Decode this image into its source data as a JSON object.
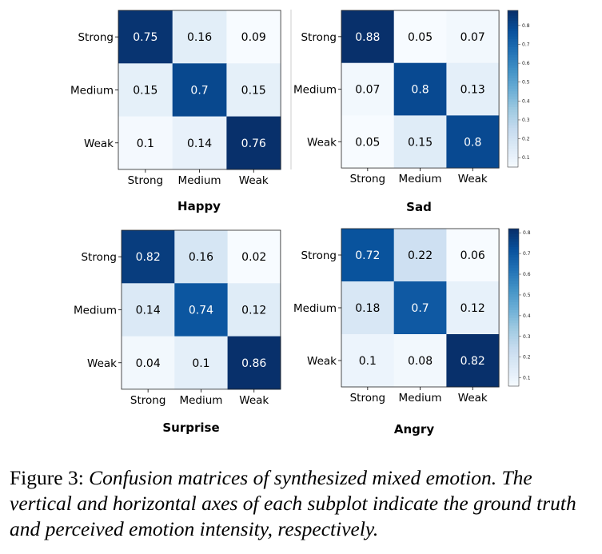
{
  "chart_data": [
    {
      "type": "heatmap",
      "title": "Happy",
      "row_labels": [
        "Strong",
        "Medium",
        "Weak"
      ],
      "col_labels": [
        "Strong",
        "Medium",
        "Weak"
      ],
      "values": [
        [
          0.75,
          0.16,
          0.09
        ],
        [
          0.15,
          0.7,
          0.15
        ],
        [
          0.1,
          0.14,
          0.76
        ]
      ],
      "colormap": "Blues",
      "colorbar": false
    },
    {
      "type": "heatmap",
      "title": "Sad",
      "row_labels": [
        "Strong",
        "Medium",
        "Weak"
      ],
      "col_labels": [
        "Strong",
        "Medium",
        "Weak"
      ],
      "values": [
        [
          0.88,
          0.05,
          0.07
        ],
        [
          0.07,
          0.8,
          0.13
        ],
        [
          0.05,
          0.15,
          0.8
        ]
      ],
      "colormap": "Blues",
      "colorbar": true,
      "colorbar_ticks": [
        "0.8",
        "0.7",
        "0.6",
        "0.5",
        "0.4",
        "0.3",
        "0.2",
        "0.1"
      ],
      "colorbar_range": [
        0.05,
        0.88
      ]
    },
    {
      "type": "heatmap",
      "title": "Surprise",
      "row_labels": [
        "Strong",
        "Medium",
        "Weak"
      ],
      "col_labels": [
        "Strong",
        "Medium",
        "Weak"
      ],
      "values": [
        [
          0.82,
          0.16,
          0.02
        ],
        [
          0.14,
          0.74,
          0.12
        ],
        [
          0.04,
          0.1,
          0.86
        ]
      ],
      "colormap": "Blues",
      "colorbar": false
    },
    {
      "type": "heatmap",
      "title": "Angry",
      "row_labels": [
        "Strong",
        "Medium",
        "Weak"
      ],
      "col_labels": [
        "Strong",
        "Medium",
        "Weak"
      ],
      "values": [
        [
          0.72,
          0.22,
          0.06
        ],
        [
          0.18,
          0.7,
          0.12
        ],
        [
          0.1,
          0.08,
          0.82
        ]
      ],
      "colormap": "Blues",
      "colorbar": true,
      "colorbar_ticks": [
        "0.8",
        "0.7",
        "0.6",
        "0.5",
        "0.4",
        "0.3",
        "0.2",
        "0.1"
      ],
      "colorbar_range": [
        0.06,
        0.82
      ]
    }
  ],
  "caption": {
    "lead": "Figure 3:",
    "text": "Confusion matrices of synthesized mixed emotion. The vertical and horizontal axes of each subplot indicate the ground truth and perceived emotion intensity, respectively."
  }
}
